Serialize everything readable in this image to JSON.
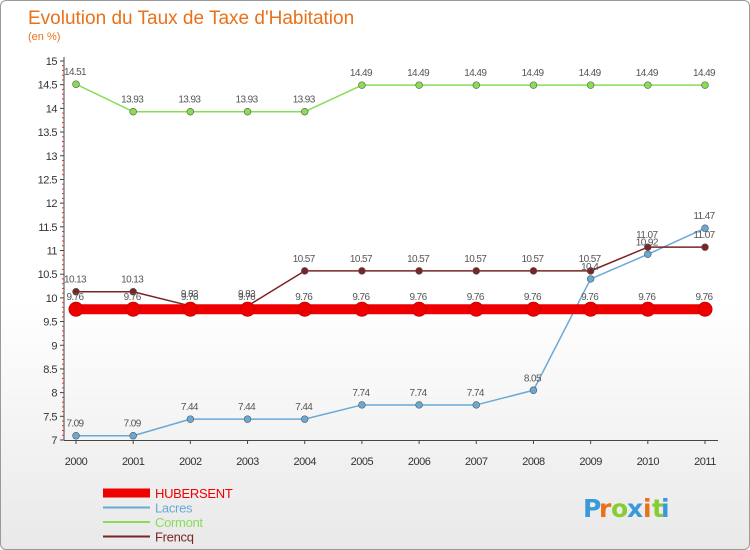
{
  "chart_data": {
    "type": "line",
    "title": "Evolution du Taux de Taxe d'Habitation",
    "subtitle": "(en %)",
    "x": [
      "2000",
      "2001",
      "2002",
      "2003",
      "2004",
      "2005",
      "2006",
      "2007",
      "2008",
      "2009",
      "2010",
      "2011"
    ],
    "ylim": [
      7,
      15
    ],
    "yticks": [
      "7",
      "7.5",
      "8",
      "8.5",
      "9",
      "9.5",
      "10",
      "10.5",
      "11",
      "11.5",
      "12",
      "12.5",
      "13",
      "13.5",
      "14",
      "14.5",
      "15"
    ],
    "grid": false,
    "legend_position": "bottom-left",
    "series": [
      {
        "name": "HUBERSENT",
        "color": "#ee0000",
        "values": [
          9.76,
          9.76,
          9.76,
          9.76,
          9.76,
          9.76,
          9.76,
          9.76,
          9.76,
          9.76,
          9.76,
          9.76
        ],
        "labels": [
          "9.76",
          "9.76",
          "9.76",
          "9.76",
          "9.76",
          "9.76",
          "9.76",
          "9.76",
          "9.76",
          "9.76",
          "9.76",
          "9.76"
        ]
      },
      {
        "name": "Lacres",
        "color": "#6aa9d6",
        "values": [
          7.09,
          7.09,
          7.44,
          7.44,
          7.44,
          7.74,
          7.74,
          7.74,
          8.05,
          10.4,
          10.92,
          11.47
        ],
        "labels": [
          "7.09",
          "7.09",
          "7.44",
          "7.44",
          "7.44",
          "7.74",
          "7.74",
          "7.74",
          "8.05",
          "10.4",
          "10.92",
          "11.47"
        ]
      },
      {
        "name": "Cormont",
        "color": "#88dd55",
        "values": [
          14.51,
          13.93,
          13.93,
          13.93,
          13.93,
          14.49,
          14.49,
          14.49,
          14.49,
          14.49,
          14.49,
          14.49
        ],
        "labels": [
          "14.51",
          "13.93",
          "13.93",
          "13.93",
          "13.93",
          "14.49",
          "14.49",
          "14.49",
          "14.49",
          "14.49",
          "14.49",
          "14.49"
        ]
      },
      {
        "name": "Frencq",
        "color": "#7a2424",
        "values": [
          10.13,
          10.13,
          9.83,
          9.83,
          10.57,
          10.57,
          10.57,
          10.57,
          10.57,
          10.57,
          11.07,
          11.07
        ],
        "labels": [
          "10.13",
          "10.13",
          "9.83",
          "9.83",
          "10.57",
          "10.57",
          "10.57",
          "10.57",
          "10.57",
          "10.57",
          "11.07",
          "11.07"
        ]
      }
    ]
  },
  "logo": {
    "text": "Proxiti",
    "chars": [
      "P",
      "r",
      "o",
      "x",
      "i",
      "t",
      "i"
    ],
    "colors": [
      "#3a9ad9",
      "#e8711a",
      "#88cc33",
      "#3a9ad9",
      "#e8711a",
      "#88cc33",
      "#3a9ad9"
    ]
  }
}
